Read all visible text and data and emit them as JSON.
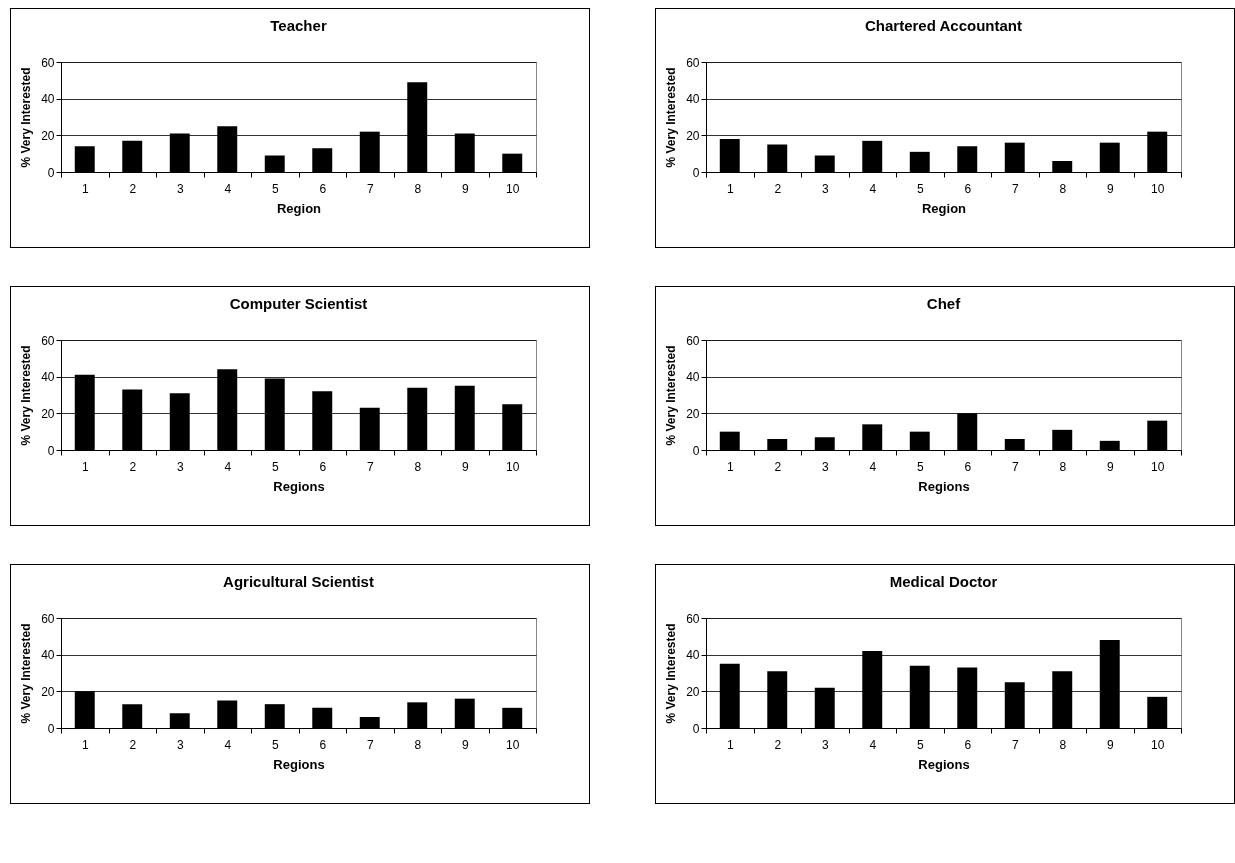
{
  "chart_data": [
    {
      "type": "bar",
      "title": "Teacher",
      "xlabel": "Region",
      "ylabel": "% Very Interested",
      "categories": [
        "1",
        "2",
        "3",
        "4",
        "5",
        "6",
        "7",
        "8",
        "9",
        "10"
      ],
      "values": [
        14,
        17,
        21,
        25,
        9,
        13,
        22,
        49,
        21,
        10
      ],
      "color": "#000000",
      "ylim": [
        0,
        60
      ],
      "yticks": [
        0,
        20,
        40,
        60
      ],
      "grid": "y"
    },
    {
      "type": "bar",
      "title": "Chartered Accountant",
      "xlabel": "Region",
      "ylabel": "% Very Interested",
      "categories": [
        "1",
        "2",
        "3",
        "4",
        "5",
        "6",
        "7",
        "8",
        "9",
        "10"
      ],
      "values": [
        18,
        15,
        9,
        17,
        11,
        14,
        16,
        6,
        16,
        22
      ],
      "color": "#000000",
      "ylim": [
        0,
        60
      ],
      "yticks": [
        0,
        20,
        40,
        60
      ],
      "grid": "y"
    },
    {
      "type": "bar",
      "title": "Computer Scientist",
      "xlabel": "Regions",
      "ylabel": "% Very Interested",
      "categories": [
        "1",
        "2",
        "3",
        "4",
        "5",
        "6",
        "7",
        "8",
        "9",
        "10"
      ],
      "values": [
        41,
        33,
        31,
        44,
        39,
        32,
        23,
        34,
        35,
        25
      ],
      "color": "#000000",
      "ylim": [
        0,
        60
      ],
      "yticks": [
        0,
        20,
        40,
        60
      ],
      "grid": "y"
    },
    {
      "type": "bar",
      "title": "Chef",
      "xlabel": "Regions",
      "ylabel": "% Very Interested",
      "categories": [
        "1",
        "2",
        "3",
        "4",
        "5",
        "6",
        "7",
        "8",
        "9",
        "10"
      ],
      "values": [
        10,
        6,
        7,
        14,
        10,
        20,
        6,
        11,
        5,
        16
      ],
      "color": "#000000",
      "ylim": [
        0,
        60
      ],
      "yticks": [
        0,
        20,
        40,
        60
      ],
      "grid": "y"
    },
    {
      "type": "bar",
      "title": "Agricultural Scientist",
      "xlabel": "Regions",
      "ylabel": "% Very Interested",
      "categories": [
        "1",
        "2",
        "3",
        "4",
        "5",
        "6",
        "7",
        "8",
        "9",
        "10"
      ],
      "values": [
        20,
        13,
        8,
        15,
        13,
        11,
        6,
        14,
        16,
        11
      ],
      "color": "#000000",
      "ylim": [
        0,
        60
      ],
      "yticks": [
        0,
        20,
        40,
        60
      ],
      "grid": "y"
    },
    {
      "type": "bar",
      "title": "Medical Doctor",
      "xlabel": "Regions",
      "ylabel": "% Very Interested",
      "categories": [
        "1",
        "2",
        "3",
        "4",
        "5",
        "6",
        "7",
        "8",
        "9",
        "10"
      ],
      "values": [
        35,
        31,
        22,
        42,
        34,
        33,
        25,
        31,
        48,
        17
      ],
      "color": "#000000",
      "ylim": [
        0,
        60
      ],
      "yticks": [
        0,
        20,
        40,
        60
      ],
      "grid": "y"
    }
  ]
}
